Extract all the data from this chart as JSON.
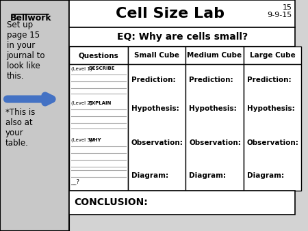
{
  "title": "Cell Size Lab",
  "page_num": "15",
  "date": "9-9-15",
  "eq": "EQ: Why are cells small?",
  "col_headers": [
    "Questions",
    "Small Cube",
    "Medium Cube",
    "Large Cube"
  ],
  "cell_items": [
    "Prediction:",
    "Hypothesis:",
    "Observation:",
    "Diagram:"
  ],
  "conclusion": "CONCLUSION:",
  "bellwork_title": "Bellwork",
  "bellwork_body": "Set up\npage 15\nin your\njournal to\nlook like\nthis.",
  "bellwork_note": "*This is\nalso at\nyour\ntable.",
  "bg_color": "#d3d3d3",
  "left_panel_bg": "#c8c8c8",
  "border_color": "#000000",
  "line_color": "#aaaaaa",
  "arrow_color": "#4472c4"
}
